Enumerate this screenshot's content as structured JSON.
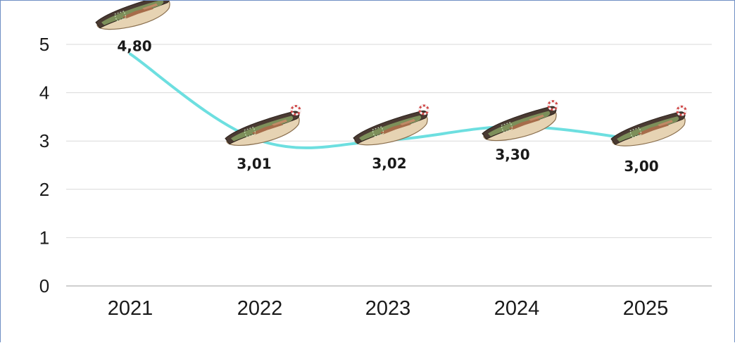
{
  "chart_data": {
    "type": "line",
    "title": "",
    "xlabel": "",
    "ylabel": "",
    "categories": [
      "2021",
      "2022",
      "2023",
      "2024",
      "2025"
    ],
    "series": [
      {
        "values": [
          4.8,
          3.01,
          3.02,
          3.3,
          3.0
        ],
        "data_labels": [
          "4,80",
          "3,01",
          "3,02",
          "3,30",
          "3,00"
        ],
        "color": "#6ddfe0",
        "marker_icon": "rowboat-icon"
      }
    ],
    "ylim": [
      0,
      5
    ],
    "yticks": [
      "0",
      "1",
      "2",
      "3",
      "4",
      "5"
    ],
    "grid": true,
    "legend": "none"
  },
  "colors": {
    "frame_border": "#6f8fc4",
    "gridline": "#d9d9d9",
    "axis": "#bfbfbf",
    "text": "#1a1a1a"
  }
}
